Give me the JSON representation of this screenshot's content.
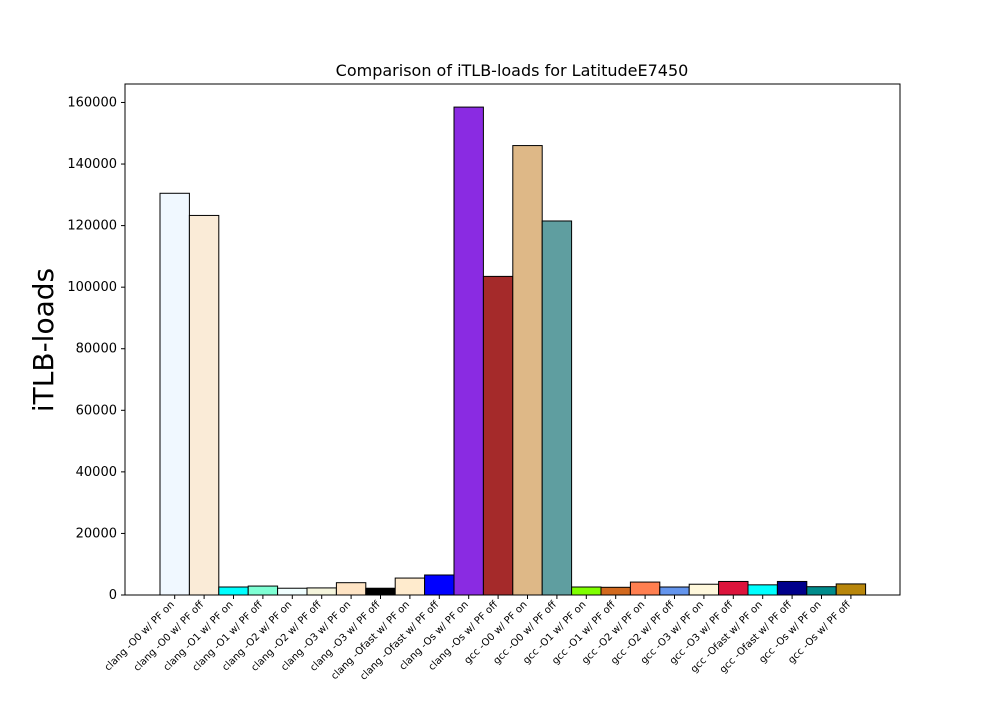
{
  "chart_data": {
    "type": "bar",
    "title": "Comparison of iTLB-loads for LatitudeE7450",
    "xlabel": "",
    "ylabel": "iTLB-loads",
    "ylim": [
      0,
      166000
    ],
    "yticks": [
      0,
      20000,
      40000,
      60000,
      80000,
      100000,
      120000,
      140000,
      160000
    ],
    "grid": false,
    "categories": [
      "clang -O0 w/ PF on",
      "clang -O0 w/ PF off",
      "clang -O1 w/ PF on",
      "clang -O1 w/ PF off",
      "clang -O2 w/ PF on",
      "clang -O2 w/ PF off",
      "clang -O3 w/ PF on",
      "clang -O3 w/ PF off",
      "clang -Ofast w/ PF on",
      "clang -Ofast w/ PF off",
      "clang -Os w/ PF on",
      "clang -Os w/ PF off",
      "gcc -O0 w/ PF on",
      "gcc -O0 w/ PF off",
      "gcc -O1 w/ PF on",
      "gcc -O1 w/ PF off",
      "gcc -O2 w/ PF on",
      "gcc -O2 w/ PF off",
      "gcc -O3 w/ PF on",
      "gcc -O3 w/ PF off",
      "gcc -Ofast w/ PF on",
      "gcc -Ofast w/ PF off",
      "gcc -Os w/ PF on",
      "gcc -Os w/ PF off"
    ],
    "values": [
      130500,
      123300,
      2600,
      2900,
      2200,
      2300,
      4000,
      2200,
      5500,
      6500,
      158500,
      103500,
      146000,
      121500,
      2600,
      2500,
      4200,
      2600,
      3500,
      4400,
      3300,
      4400,
      2700,
      3600
    ],
    "colors": [
      "#f0f8ff",
      "#faebd7",
      "#00ffff",
      "#7fffd4",
      "#f0ffff",
      "#f5f5dc",
      "#ffe4c4",
      "#000000",
      "#ffebcd",
      "#0000ff",
      "#8a2be2",
      "#a52a2a",
      "#deb887",
      "#5f9ea0",
      "#7fff00",
      "#d2691e",
      "#ff7f50",
      "#6495ed",
      "#fff8dc",
      "#dc143c",
      "#00ffff",
      "#00008b",
      "#008b8b",
      "#b8860b"
    ]
  }
}
